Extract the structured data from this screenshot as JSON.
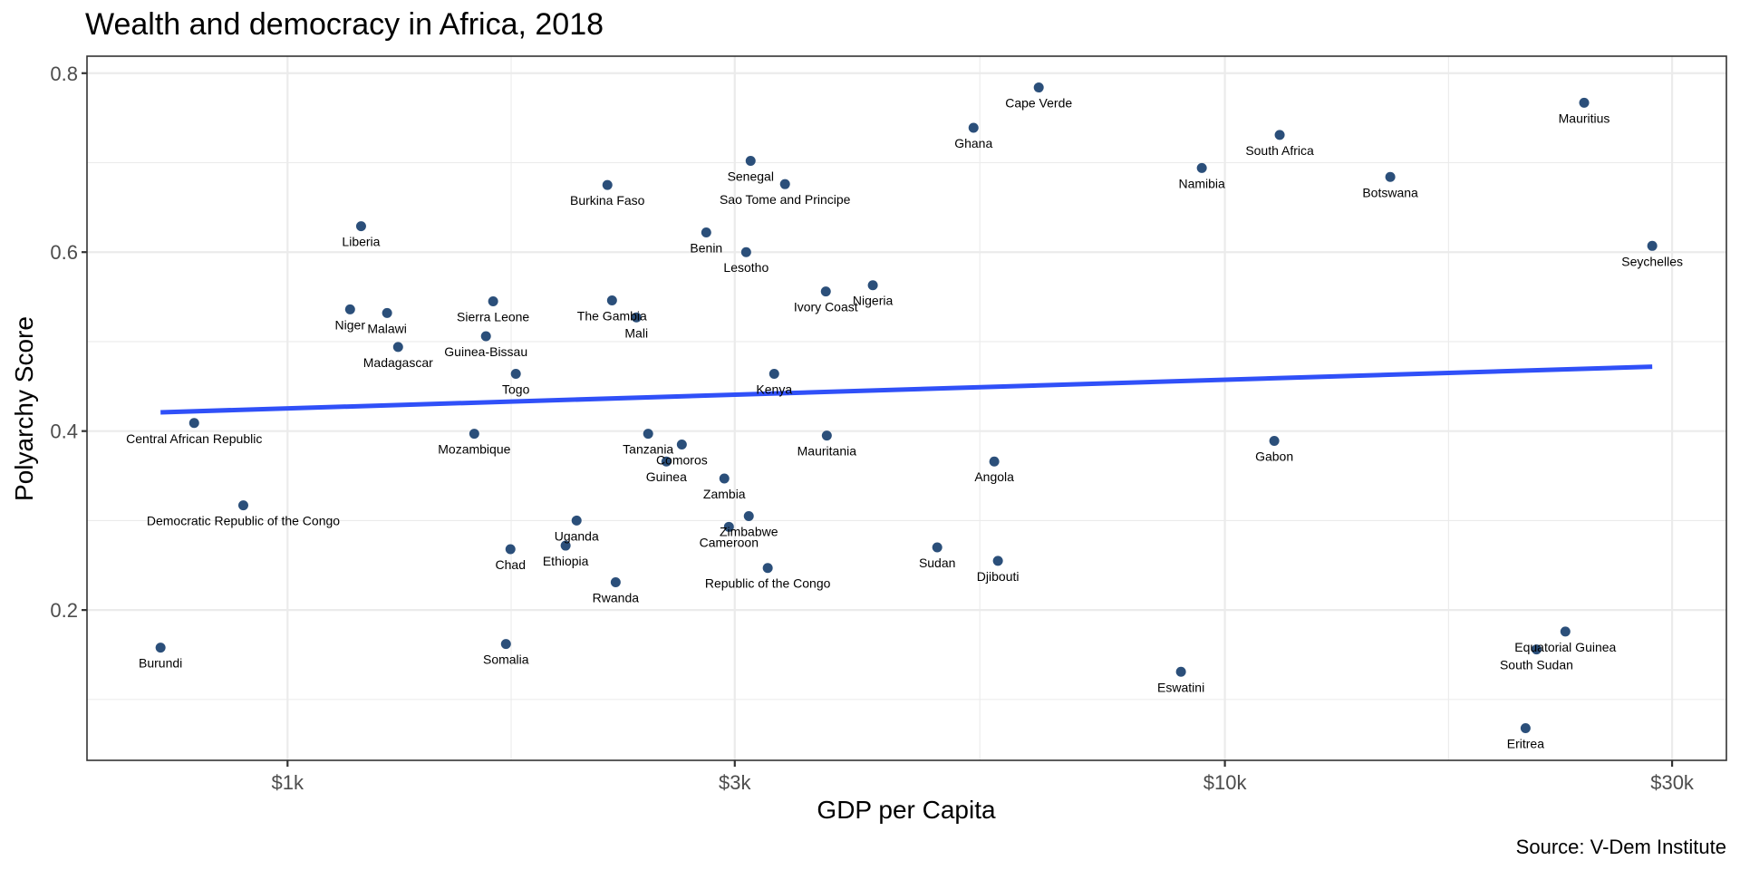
{
  "chart_data": {
    "type": "scatter",
    "title": "Wealth and democracy in Africa, 2018",
    "xlabel": "GDP per Capita",
    "ylabel": "Polyarchy Score",
    "caption": "Source: V-Dem Institute",
    "x_scale": "log10",
    "xlim": [
      611,
      34280
    ],
    "ylim": [
      0.032,
      0.819
    ],
    "grid": true,
    "x_ticks": [
      {
        "value": 1000,
        "label": "$1k"
      },
      {
        "value": 3000,
        "label": "$3k"
      },
      {
        "value": 10000,
        "label": "$10k"
      },
      {
        "value": 30000,
        "label": "$30k"
      }
    ],
    "x_minor": [
      1732,
      5477,
      17321
    ],
    "y_ticks": [
      {
        "value": 0.2,
        "label": "0.2"
      },
      {
        "value": 0.4,
        "label": "0.4"
      },
      {
        "value": 0.6,
        "label": "0.6"
      },
      {
        "value": 0.8,
        "label": "0.8"
      }
    ],
    "y_minor": [
      0.1,
      0.3,
      0.5,
      0.7
    ],
    "point_color": "#2B4F7A",
    "trend_color": "#3050F8",
    "trend_line": {
      "x": [
        732,
        28570
      ],
      "y": [
        0.421,
        0.472
      ]
    },
    "points": [
      {
        "country": "Burundi",
        "gdp": 732,
        "polyarchy": 0.158
      },
      {
        "country": "Central African Republic",
        "gdp": 795,
        "polyarchy": 0.409
      },
      {
        "country": "Democratic Republic of the Congo",
        "gdp": 897,
        "polyarchy": 0.317
      },
      {
        "country": "Liberia",
        "gdp": 1198,
        "polyarchy": 0.629
      },
      {
        "country": "Niger",
        "gdp": 1166,
        "polyarchy": 0.536
      },
      {
        "country": "Malawi",
        "gdp": 1277,
        "polyarchy": 0.532
      },
      {
        "country": "Madagascar",
        "gdp": 1312,
        "polyarchy": 0.494
      },
      {
        "country": "Sierra Leone",
        "gdp": 1657,
        "polyarchy": 0.545
      },
      {
        "country": "Guinea-Bissau",
        "gdp": 1628,
        "polyarchy": 0.506
      },
      {
        "country": "Togo",
        "gdp": 1752,
        "polyarchy": 0.464
      },
      {
        "country": "Mozambique",
        "gdp": 1582,
        "polyarchy": 0.397
      },
      {
        "country": "Chad",
        "gdp": 1729,
        "polyarchy": 0.268
      },
      {
        "country": "Somalia",
        "gdp": 1710,
        "polyarchy": 0.162
      },
      {
        "country": "Uganda",
        "gdp": 2034,
        "polyarchy": 0.3
      },
      {
        "country": "Ethiopia",
        "gdp": 1980,
        "polyarchy": 0.272
      },
      {
        "country": "Rwanda",
        "gdp": 2239,
        "polyarchy": 0.231
      },
      {
        "country": "Burkina Faso",
        "gdp": 2194,
        "polyarchy": 0.675
      },
      {
        "country": "The Gambia",
        "gdp": 2219,
        "polyarchy": 0.546
      },
      {
        "country": "Mali",
        "gdp": 2356,
        "polyarchy": 0.527
      },
      {
        "country": "Tanzania",
        "gdp": 2425,
        "polyarchy": 0.397
      },
      {
        "country": "Comoros",
        "gdp": 2634,
        "polyarchy": 0.385
      },
      {
        "country": "Guinea",
        "gdp": 2536,
        "polyarchy": 0.366
      },
      {
        "country": "Benin",
        "gdp": 2797,
        "polyarchy": 0.622
      },
      {
        "country": "Zambia",
        "gdp": 2924,
        "polyarchy": 0.347
      },
      {
        "country": "Cameroon",
        "gdp": 2957,
        "polyarchy": 0.293
      },
      {
        "country": "Lesotho",
        "gdp": 3085,
        "polyarchy": 0.6
      },
      {
        "country": "Senegal",
        "gdp": 3119,
        "polyarchy": 0.702
      },
      {
        "country": "Zimbabwe",
        "gdp": 3105,
        "polyarchy": 0.305
      },
      {
        "country": "Republic of the Congo",
        "gdp": 3253,
        "polyarchy": 0.247
      },
      {
        "country": "Kenya",
        "gdp": 3305,
        "polyarchy": 0.464
      },
      {
        "country": "Sao Tome and Principe",
        "gdp": 3394,
        "polyarchy": 0.676
      },
      {
        "country": "Ivory Coast",
        "gdp": 3752,
        "polyarchy": 0.556
      },
      {
        "country": "Mauritania",
        "gdp": 3761,
        "polyarchy": 0.395
      },
      {
        "country": "Nigeria",
        "gdp": 4211,
        "polyarchy": 0.563
      },
      {
        "country": "Sudan",
        "gdp": 4933,
        "polyarchy": 0.27
      },
      {
        "country": "Ghana",
        "gdp": 5393,
        "polyarchy": 0.739
      },
      {
        "country": "Angola",
        "gdp": 5675,
        "polyarchy": 0.366
      },
      {
        "country": "Djibouti",
        "gdp": 5726,
        "polyarchy": 0.255
      },
      {
        "country": "Cape Verde",
        "gdp": 6330,
        "polyarchy": 0.784
      },
      {
        "country": "Eswatini",
        "gdp": 8977,
        "polyarchy": 0.131
      },
      {
        "country": "Namibia",
        "gdp": 9449,
        "polyarchy": 0.694
      },
      {
        "country": "Gabon",
        "gdp": 11290,
        "polyarchy": 0.389
      },
      {
        "country": "South Africa",
        "gdp": 11441,
        "polyarchy": 0.731
      },
      {
        "country": "Botswana",
        "gdp": 15012,
        "polyarchy": 0.684
      },
      {
        "country": "Eritrea",
        "gdp": 20930,
        "polyarchy": 0.068
      },
      {
        "country": "South Sudan",
        "gdp": 21500,
        "polyarchy": 0.156
      },
      {
        "country": "Equatorial Guinea",
        "gdp": 23080,
        "polyarchy": 0.176
      },
      {
        "country": "Mauritius",
        "gdp": 24170,
        "polyarchy": 0.767
      },
      {
        "country": "Seychelles",
        "gdp": 28570,
        "polyarchy": 0.607
      }
    ]
  }
}
